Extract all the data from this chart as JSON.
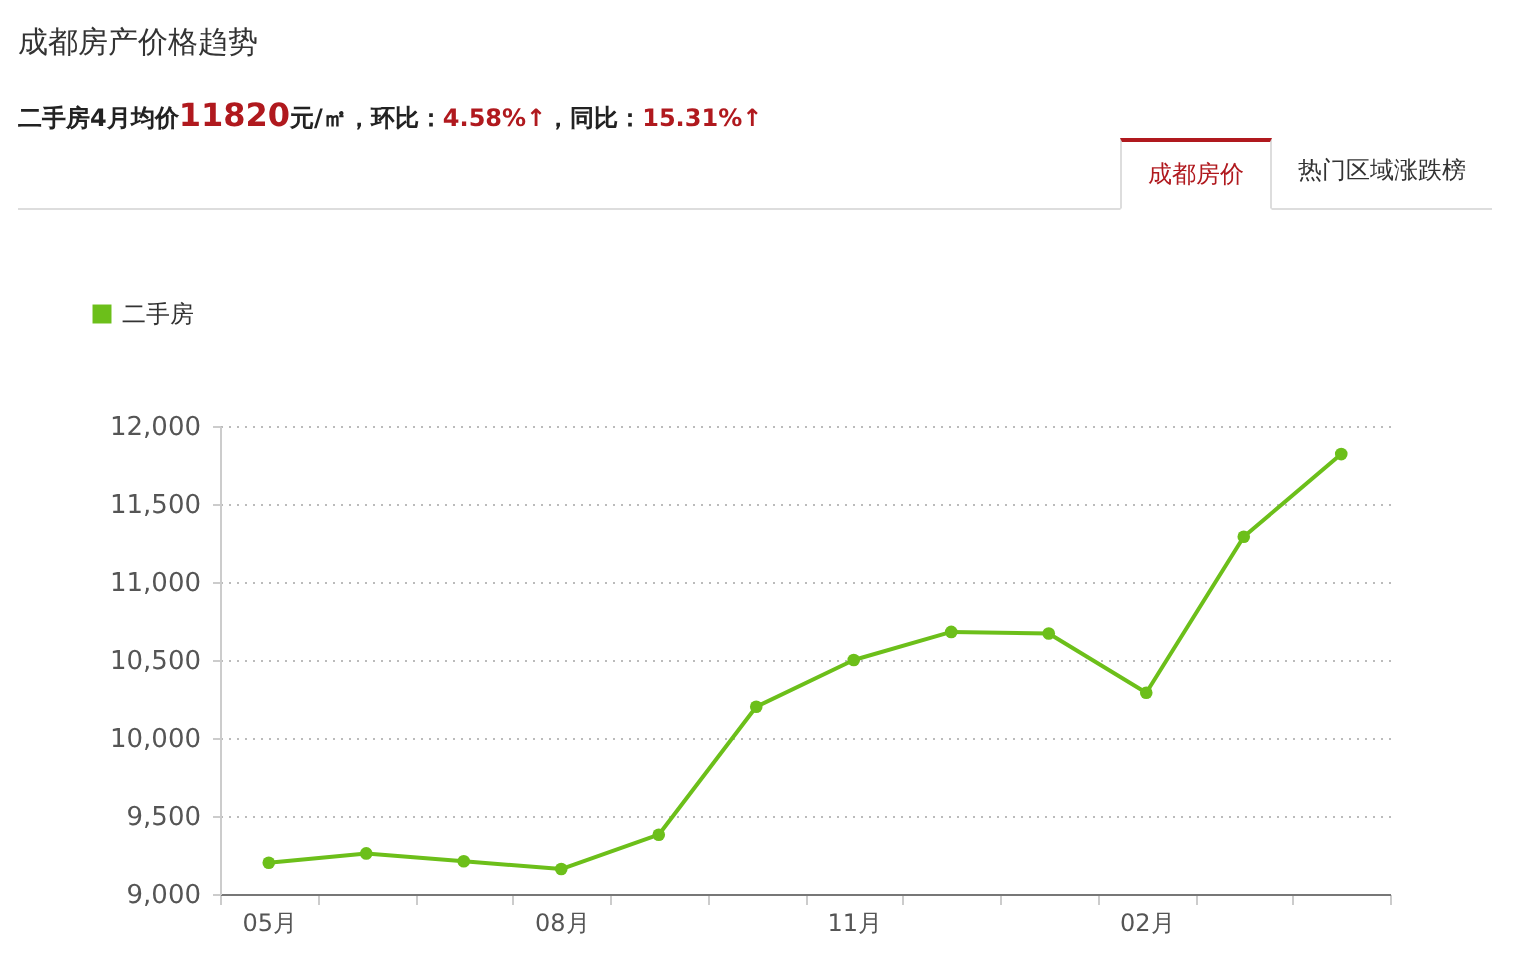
{
  "chart_data": {
    "type": "line",
    "title": "成都房产价格趋势",
    "subtitle": "二手房4月均价11820元/㎡，环比：4.58%↑，同比：15.31%↑",
    "annotations": [
      "成都房价",
      "热门区域涨跌榜"
    ],
    "categories": [
      "05月",
      null,
      null,
      "08月",
      null,
      null,
      "11月",
      null,
      null,
      "02月",
      null,
      null
    ],
    "series": [
      {
        "name": "二手房",
        "color": "#6cbf1a",
        "values": [
          9200,
          9260,
          9210,
          9160,
          9380,
          10200,
          10500,
          10680,
          10670,
          10290,
          11290,
          11820
        ]
      }
    ],
    "ylim": [
      9000,
      12000
    ],
    "yticks": [
      {
        "value": 9000,
        "label": "9,000"
      },
      {
        "value": 9500,
        "label": "9,500"
      },
      {
        "value": 10000,
        "label": "10,000"
      },
      {
        "value": 10500,
        "label": "10,500"
      },
      {
        "value": 11000,
        "label": "11,000"
      },
      {
        "value": 11500,
        "label": "11,500"
      },
      {
        "value": 12000,
        "label": "12,000"
      }
    ],
    "grid": "y",
    "legend": "top left",
    "marker": "circle",
    "line_style": "solid"
  }
}
